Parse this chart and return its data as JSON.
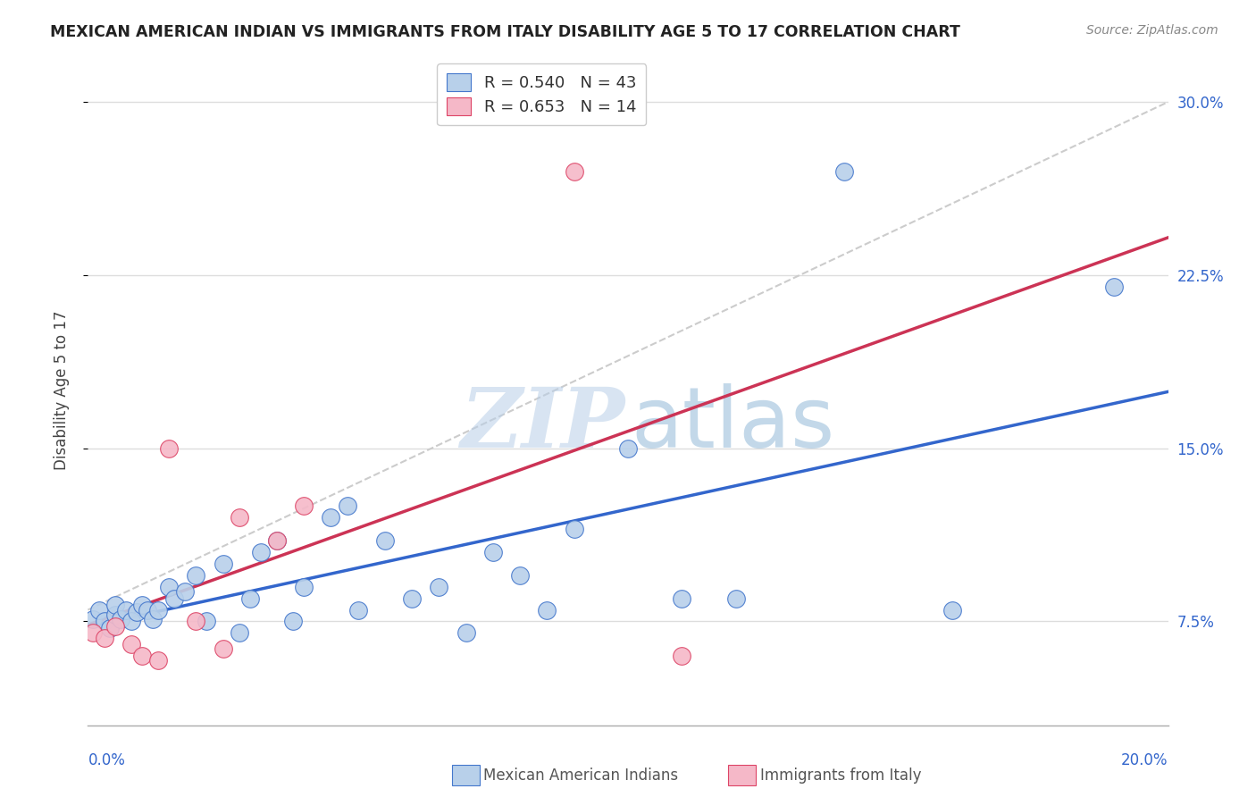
{
  "title": "MEXICAN AMERICAN INDIAN VS IMMIGRANTS FROM ITALY DISABILITY AGE 5 TO 17 CORRELATION CHART",
  "source": "Source: ZipAtlas.com",
  "ylabel": "Disability Age 5 to 17",
  "blue_label": "Mexican American Indians",
  "pink_label": "Immigrants from Italy",
  "R_blue": 0.54,
  "N_blue": 43,
  "R_pink": 0.653,
  "N_pink": 14,
  "blue_marker_color": "#b8d0ea",
  "blue_edge_color": "#4477cc",
  "pink_marker_color": "#f5b8c8",
  "pink_edge_color": "#dd4466",
  "blue_line_color": "#3366cc",
  "pink_line_color": "#cc3355",
  "diag_line_color": "#cccccc",
  "watermark_color": "#ccddf5",
  "grid_color": "#dddddd",
  "xlim": [
    0.0,
    0.2
  ],
  "ylim": [
    0.03,
    0.32
  ],
  "blue_x": [
    0.001,
    0.002,
    0.003,
    0.004,
    0.005,
    0.005,
    0.006,
    0.007,
    0.008,
    0.009,
    0.01,
    0.011,
    0.012,
    0.013,
    0.015,
    0.016,
    0.018,
    0.02,
    0.022,
    0.025,
    0.028,
    0.03,
    0.032,
    0.035,
    0.038,
    0.04,
    0.045,
    0.048,
    0.05,
    0.055,
    0.06,
    0.065,
    0.07,
    0.075,
    0.08,
    0.085,
    0.09,
    0.1,
    0.11,
    0.12,
    0.14,
    0.16,
    0.19
  ],
  "blue_y": [
    0.076,
    0.08,
    0.075,
    0.072,
    0.078,
    0.082,
    0.076,
    0.08,
    0.075,
    0.079,
    0.082,
    0.08,
    0.076,
    0.08,
    0.09,
    0.085,
    0.088,
    0.095,
    0.075,
    0.1,
    0.07,
    0.085,
    0.105,
    0.11,
    0.075,
    0.09,
    0.12,
    0.125,
    0.08,
    0.11,
    0.085,
    0.09,
    0.07,
    0.105,
    0.095,
    0.08,
    0.115,
    0.15,
    0.085,
    0.085,
    0.27,
    0.08,
    0.22
  ],
  "pink_x": [
    0.001,
    0.003,
    0.005,
    0.008,
    0.01,
    0.013,
    0.015,
    0.02,
    0.025,
    0.028,
    0.035,
    0.04,
    0.09,
    0.11
  ],
  "pink_y": [
    0.07,
    0.068,
    0.073,
    0.065,
    0.06,
    0.058,
    0.15,
    0.075,
    0.063,
    0.12,
    0.11,
    0.125,
    0.27,
    0.06
  ]
}
